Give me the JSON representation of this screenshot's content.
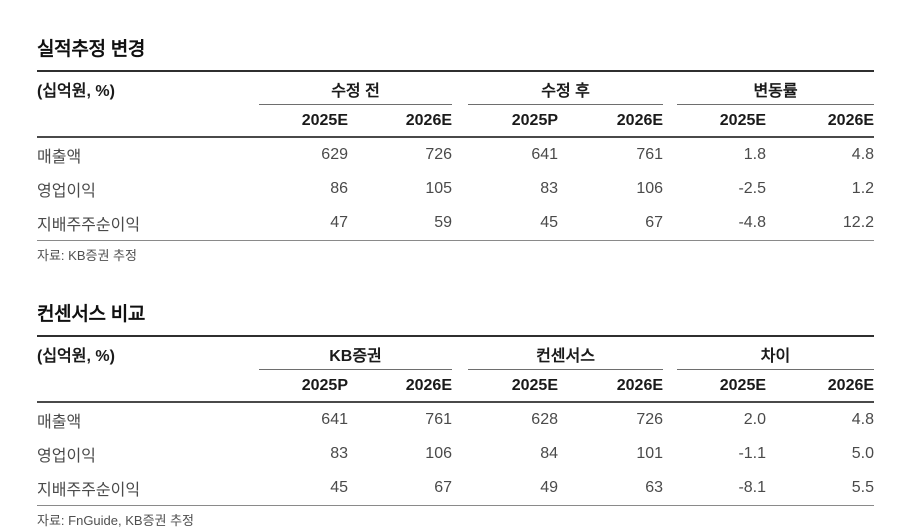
{
  "page": {
    "background": "#ffffff",
    "title_color": "#101010",
    "body_text_color": "#4a4a4a",
    "rule_dark": "#2f2f2f",
    "rule_medium": "#4a4a4a",
    "rule_light": "#8a8a8a"
  },
  "tables": [
    {
      "title": "실적추정 변경",
      "unit_label": "(십억원, %)",
      "groups": [
        {
          "label": "수정 전",
          "columns": [
            "2025E",
            "2026E"
          ]
        },
        {
          "label": "수정 후",
          "columns": [
            "2025P",
            "2026E"
          ]
        },
        {
          "label": "변동률",
          "columns": [
            "2025E",
            "2026E"
          ]
        }
      ],
      "rows": [
        {
          "label": "매출액",
          "values": [
            "629",
            "726",
            "641",
            "761",
            "1.8",
            "4.8"
          ]
        },
        {
          "label": "영업이익",
          "values": [
            "86",
            "105",
            "83",
            "106",
            "-2.5",
            "1.2"
          ]
        },
        {
          "label": "지배주주순이익",
          "values": [
            "47",
            "59",
            "45",
            "67",
            "-4.8",
            "12.2"
          ]
        }
      ],
      "source": "자료: KB증권 추정"
    },
    {
      "title": "컨센서스 비교",
      "unit_label": "(십억원, %)",
      "groups": [
        {
          "label": "KB증권",
          "columns": [
            "2025P",
            "2026E"
          ]
        },
        {
          "label": "컨센서스",
          "columns": [
            "2025E",
            "2026E"
          ]
        },
        {
          "label": "차이",
          "columns": [
            "2025E",
            "2026E"
          ]
        }
      ],
      "rows": [
        {
          "label": "매출액",
          "values": [
            "641",
            "761",
            "628",
            "726",
            "2.0",
            "4.8"
          ]
        },
        {
          "label": "영업이익",
          "values": [
            "83",
            "106",
            "84",
            "101",
            "-1.1",
            "5.0"
          ]
        },
        {
          "label": "지배주주순이익",
          "values": [
            "45",
            "67",
            "49",
            "63",
            "-8.1",
            "5.5"
          ]
        }
      ],
      "source": "자료: FnGuide, KB증권 추정"
    }
  ]
}
